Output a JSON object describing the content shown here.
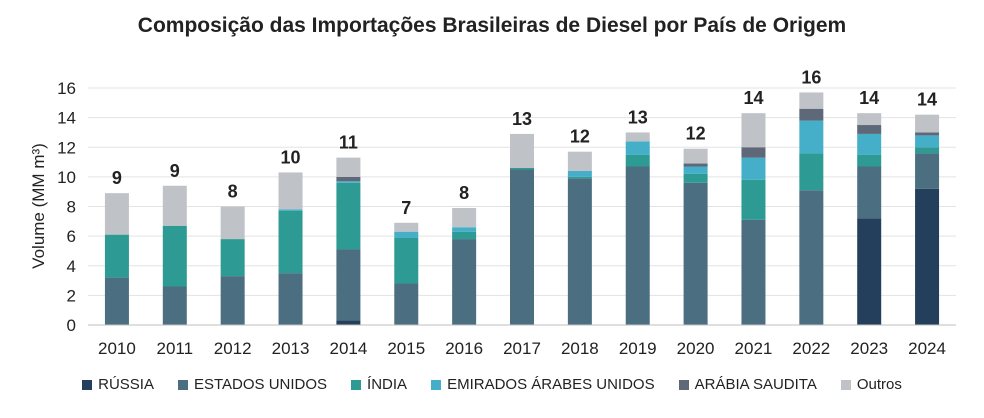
{
  "chart_data": {
    "type": "bar",
    "stacked": true,
    "title": "Composição das Importações Brasileiras de Diesel por País de Origem",
    "ylabel": "Volume (MM m³)",
    "xlabel": "",
    "ylim": [
      0,
      16
    ],
    "yticks": [
      0,
      2,
      4,
      6,
      8,
      10,
      12,
      14,
      16
    ],
    "grid": true,
    "legend_position": "bottom",
    "categories": [
      "2010",
      "2011",
      "2012",
      "2013",
      "2014",
      "2015",
      "2016",
      "2017",
      "2018",
      "2019",
      "2020",
      "2021",
      "2022",
      "2023",
      "2024"
    ],
    "totals_labels": [
      "9",
      "9",
      "8",
      "10",
      "11",
      "7",
      "8",
      "13",
      "12",
      "13",
      "12",
      "14",
      "16",
      "14",
      "14"
    ],
    "series": [
      {
        "name": "RÚSSIA",
        "color": "#243f5c",
        "values": [
          0,
          0,
          0,
          0,
          0.3,
          0,
          0,
          0,
          0,
          0,
          0,
          0,
          0,
          7.2,
          9.2
        ]
      },
      {
        "name": "ESTADOS UNIDOS",
        "color": "#4b6f80",
        "values": [
          3.2,
          2.6,
          3.3,
          3.5,
          4.8,
          2.8,
          5.8,
          10.5,
          9.9,
          10.7,
          9.6,
          7.1,
          9.1,
          3.5,
          2.4
        ]
      },
      {
        "name": "ÍNDIA",
        "color": "#2e9a94",
        "values": [
          2.9,
          4.1,
          2.5,
          4.2,
          4.5,
          3.1,
          0.5,
          0.1,
          0.1,
          0.8,
          0.6,
          2.7,
          2.5,
          0.8,
          0.4
        ]
      },
      {
        "name": "EMIRADOS ÁRABES UNIDOS",
        "color": "#45afc9",
        "values": [
          0,
          0,
          0,
          0.1,
          0.1,
          0.4,
          0.3,
          0,
          0.4,
          0.9,
          0.5,
          1.5,
          2.2,
          1.4,
          0.8
        ]
      },
      {
        "name": "ARÁBIA SAUDITA",
        "color": "#5e6878",
        "values": [
          0,
          0,
          0,
          0,
          0.3,
          0,
          0,
          0,
          0,
          0,
          0.2,
          0.7,
          0.8,
          0.6,
          0.2
        ]
      },
      {
        "name": "Outros",
        "color": "#bfc2c6",
        "values": [
          2.8,
          2.7,
          2.2,
          2.5,
          1.3,
          0.6,
          1.3,
          2.3,
          1.3,
          0.6,
          1.0,
          2.3,
          1.1,
          0.8,
          1.2
        ]
      }
    ]
  }
}
